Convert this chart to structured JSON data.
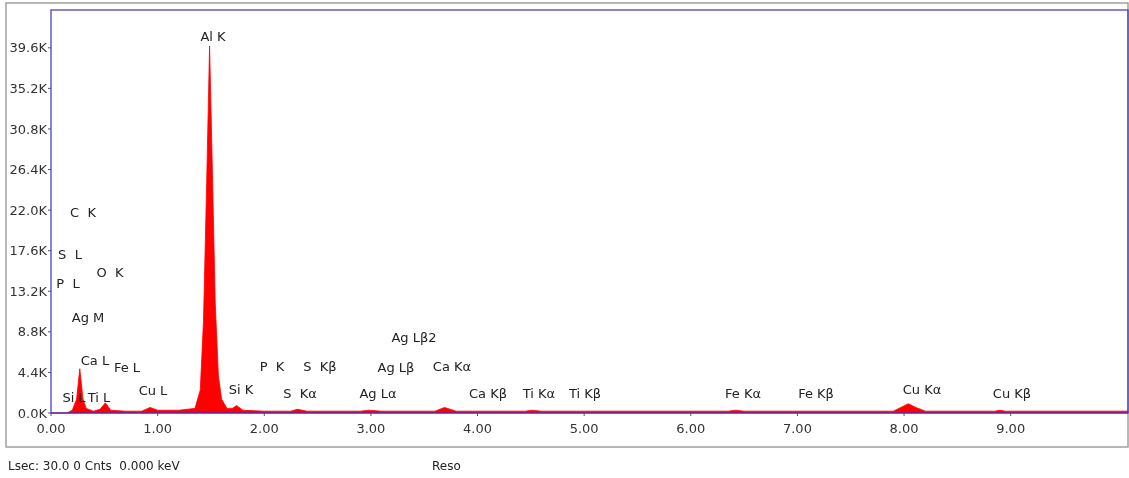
{
  "chart_data": {
    "type": "area",
    "color": "#ff0000",
    "x": [
      0,
      0.15,
      0.2,
      0.24,
      0.27,
      0.3,
      0.33,
      0.4,
      0.46,
      0.51,
      0.56,
      0.7,
      0.85,
      0.93,
      1.0,
      1.2,
      1.35,
      1.4,
      1.43,
      1.46,
      1.487,
      1.51,
      1.54,
      1.57,
      1.6,
      1.65,
      1.7,
      1.74,
      1.8,
      2.0,
      2.25,
      2.31,
      2.4,
      2.9,
      2.98,
      3.1,
      3.6,
      3.69,
      3.8,
      4.0,
      4.45,
      4.51,
      4.6,
      6.35,
      6.42,
      6.5,
      7.9,
      7.97,
      8.04,
      8.11,
      8.2,
      8.85,
      8.9,
      8.95,
      10.1
    ],
    "values": [
      0,
      0,
      300,
      1500,
      4800,
      1500,
      500,
      200,
      400,
      1100,
      300,
      200,
      200,
      600,
      300,
      300,
      500,
      2500,
      10000,
      25000,
      39800,
      28000,
      12000,
      4000,
      1500,
      500,
      500,
      800,
      300,
      200,
      200,
      400,
      200,
      200,
      300,
      200,
      200,
      600,
      200,
      200,
      200,
      300,
      200,
      200,
      300,
      200,
      200,
      600,
      1000,
      600,
      200,
      200,
      300,
      200,
      200
    ],
    "xlim": [
      0,
      10.1
    ],
    "ylim": [
      0,
      43700
    ],
    "xticks": [
      {
        "value": 0,
        "label": "0.00"
      },
      {
        "value": 1,
        "label": "1.00"
      },
      {
        "value": 2,
        "label": "2.00"
      },
      {
        "value": 3,
        "label": "3.00"
      },
      {
        "value": 4,
        "label": "4.00"
      },
      {
        "value": 5,
        "label": "5.00"
      },
      {
        "value": 6,
        "label": "6.00"
      },
      {
        "value": 7,
        "label": "7.00"
      },
      {
        "value": 8,
        "label": "8.00"
      },
      {
        "value": 9,
        "label": "9.00"
      }
    ],
    "yticks": [
      {
        "value": 0,
        "label": "0.0K"
      },
      {
        "value": 4400,
        "label": "4.4K"
      },
      {
        "value": 8800,
        "label": "8.8K"
      },
      {
        "value": 13200,
        "label": "13.2K"
      },
      {
        "value": 17600,
        "label": "17.6K"
      },
      {
        "value": 22000,
        "label": "22.0K"
      },
      {
        "value": 26400,
        "label": "26.4K"
      },
      {
        "value": 30800,
        "label": "30.8K"
      },
      {
        "value": 35200,
        "label": "35.2K"
      },
      {
        "value": 39600,
        "label": "39.6K"
      }
    ],
    "annotations": [
      "Al K",
      "C  K",
      "S  L",
      "P  L",
      "O  K",
      "Ag M",
      "Ca L",
      "Fe L",
      "Si L",
      "Ti L",
      "Cu L",
      "Si K",
      "P  K",
      "S  Kβ",
      "S  Kα",
      "Ag Lα",
      "Ag Lβ",
      "Ag Lβ2",
      "Ca Kα",
      "Ca Kβ",
      "Ti Kα",
      "Ti Kβ",
      "Fe Kα",
      "Fe Kβ",
      "Cu Kα",
      "Cu Kβ",
      "Lsec: 30.0 0 Cnts  0.000 keV",
      "Reso"
    ]
  }
}
